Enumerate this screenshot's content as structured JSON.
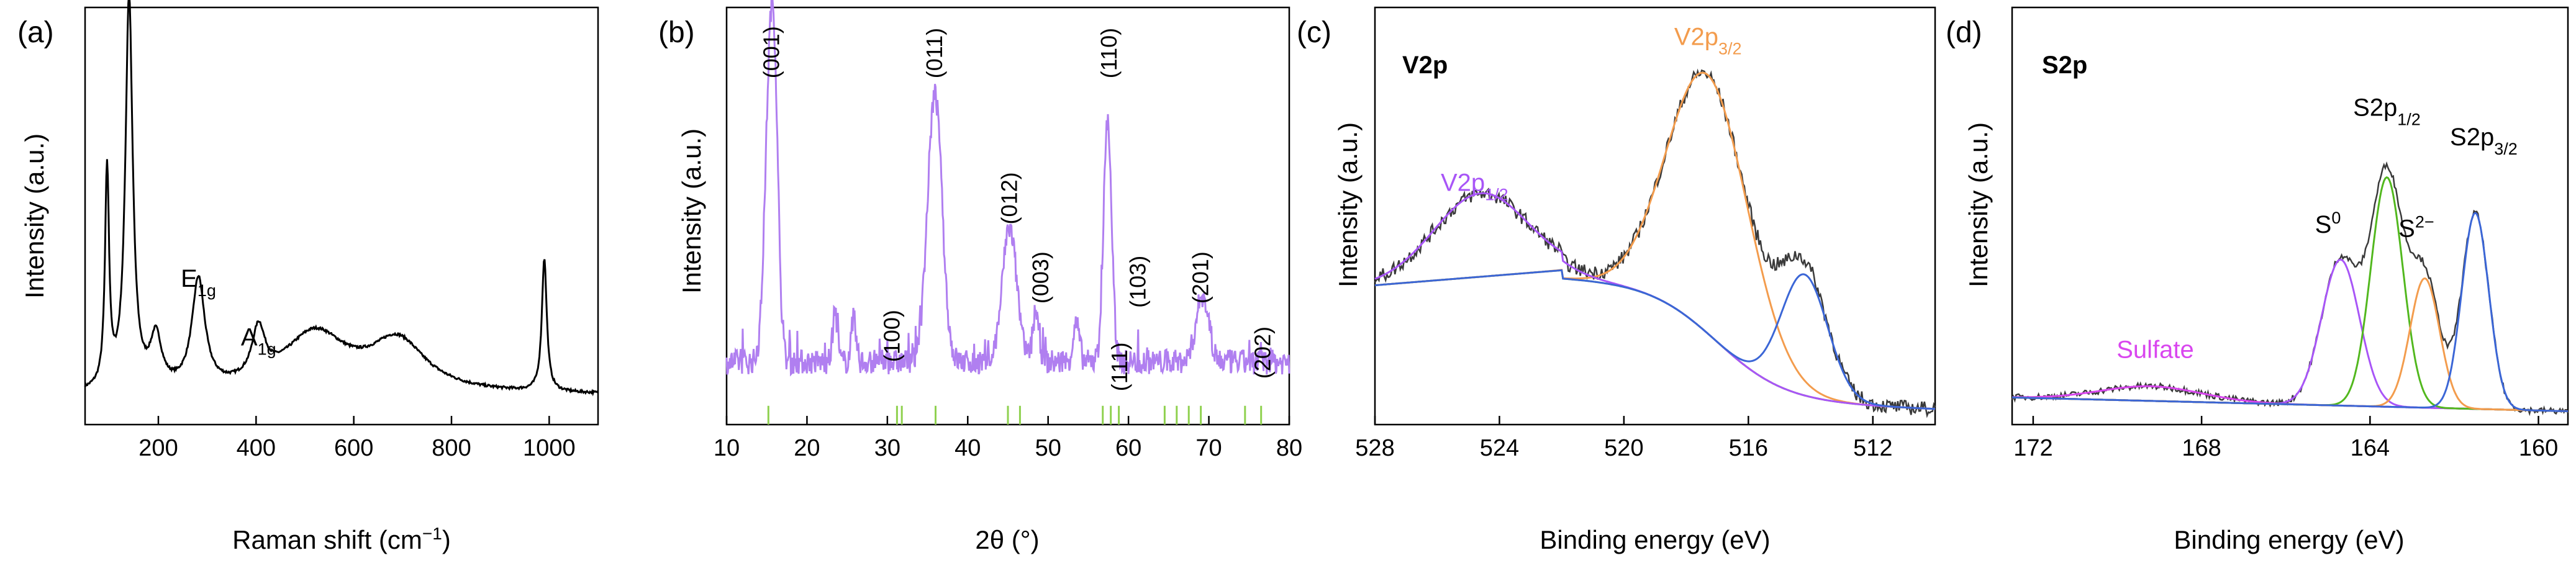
{
  "chart_data": [
    {
      "panel_label": "(a)",
      "type": "line",
      "xlabel_main": "Raman shift (cm",
      "xlabel_sup": "−1",
      "xlabel_close": ")",
      "ylabel": "Intensity (a.u.)",
      "xlim": [
        50,
        1100
      ],
      "ylim": [
        0,
        1.0
      ],
      "xticks": [
        200,
        400,
        600,
        800,
        1000
      ],
      "line_color": "#000000",
      "peaks": [
        {
          "x": 95,
          "h": 0.52,
          "w": 5
        },
        {
          "x": 140,
          "h": 0.94,
          "w": 9
        },
        {
          "x": 195,
          "h": 0.12,
          "w": 14
        },
        {
          "x": 282,
          "h": 0.26,
          "w": 16
        },
        {
          "x": 405,
          "h": 0.12,
          "w": 16
        },
        {
          "x": 520,
          "h": 0.14,
          "w": 80
        },
        {
          "x": 690,
          "h": 0.12,
          "w": 70
        },
        {
          "x": 990,
          "h": 0.32,
          "w": 6
        }
      ],
      "baseline": 0.07,
      "annotations": [
        {
          "base": "E",
          "sub": "1g",
          "x": 282,
          "y": 0.33
        },
        {
          "base": "A",
          "sub": "1g",
          "x": 405,
          "y": 0.19
        }
      ]
    },
    {
      "panel_label": "(b)",
      "type": "line",
      "xlabel_main": "2θ (°)",
      "ylabel": "Intensity (a.u.)",
      "xlim": [
        10,
        80
      ],
      "ylim": [
        0,
        1.0
      ],
      "xticks": [
        10,
        20,
        30,
        40,
        50,
        60,
        70,
        80
      ],
      "line_color": "#b07ff0",
      "ref_color": "#8fd14f",
      "peaks": [
        {
          "x": 15.3,
          "h": 0.58,
          "w": 0.6
        },
        {
          "x": 16.0,
          "h": 0.48,
          "w": 0.5
        },
        {
          "x": 35.9,
          "h": 0.64,
          "w": 0.9
        },
        {
          "x": 45.2,
          "h": 0.32,
          "w": 0.9
        },
        {
          "x": 57.4,
          "h": 0.58,
          "w": 0.5
        },
        {
          "x": 69.2,
          "h": 0.16,
          "w": 0.8
        },
        {
          "x": 23.5,
          "h": 0.12,
          "w": 0.3
        },
        {
          "x": 25.8,
          "h": 0.1,
          "w": 0.3
        },
        {
          "x": 48.5,
          "h": 0.12,
          "w": 0.4
        },
        {
          "x": 53.5,
          "h": 0.09,
          "w": 0.4
        }
      ],
      "baseline": 0.15,
      "ref_lines": [
        15.2,
        31.2,
        31.8,
        36.0,
        45.0,
        46.5,
        56.8,
        57.8,
        58.8,
        64.5,
        66.0,
        67.5,
        69.0,
        74.5,
        76.5
      ],
      "hkl_labels": [
        {
          "text": "(001)",
          "x": 15.6,
          "y": 0.83
        },
        {
          "text": "(011)",
          "x": 35.9,
          "y": 0.83
        },
        {
          "text": "(012)",
          "x": 45.2,
          "y": 0.48
        },
        {
          "text": "(100)",
          "x": 30.6,
          "y": 0.15
        },
        {
          "text": "(003)",
          "x": 49.1,
          "y": 0.29
        },
        {
          "text": "(110)",
          "x": 57.6,
          "y": 0.83
        },
        {
          "text": "(111)",
          "x": 58.9,
          "y": 0.08
        },
        {
          "text": "(103)",
          "x": 61.2,
          "y": 0.28
        },
        {
          "text": "(201)",
          "x": 69.0,
          "y": 0.29
        },
        {
          "text": "(202)",
          "x": 76.7,
          "y": 0.11
        }
      ]
    },
    {
      "panel_label": "(c)",
      "type": "line",
      "title": "V2p",
      "xlabel_main": "Binding energy (eV)",
      "ylabel": "Intensity (a.u.)",
      "xlim": [
        528,
        510
      ],
      "ylim": [
        0,
        1.0
      ],
      "xticks": [
        528,
        524,
        520,
        516,
        512
      ],
      "series": [
        {
          "name": "background",
          "color": "#6aaa2a"
        },
        {
          "name": "V2p3/2 fit",
          "color": "#f39c4d",
          "center": 517.3,
          "h": 0.62,
          "w": 1.3
        },
        {
          "name": "V2p1/2 fit",
          "color": "#a855f7",
          "center": 524.6,
          "h": 0.2,
          "w": 1.5
        },
        {
          "name": "low BE component",
          "color": "#3b66d6",
          "center": 514.2,
          "h": 0.29,
          "w": 0.75
        },
        {
          "name": "raw data",
          "color": "#3a3a3a"
        }
      ],
      "labels": [
        {
          "base": "V2p",
          "sub": "3/2",
          "x": 517.3,
          "y": 0.91,
          "color": "#f39c4d"
        },
        {
          "base": "V2p",
          "sub": "1/2",
          "x": 524.8,
          "y": 0.56,
          "color": "#a855f7"
        }
      ]
    },
    {
      "panel_label": "(d)",
      "type": "line",
      "title": "S2p",
      "xlabel_main": "Binding energy (eV)",
      "ylabel": "Intensity (a.u.)",
      "xlim": [
        172.5,
        159.3
      ],
      "ylim": [
        0,
        1.0
      ],
      "xticks": [
        172,
        168,
        164,
        160
      ],
      "series": [
        {
          "name": "background",
          "color": "#f39c4d"
        },
        {
          "name": "Sulfate",
          "color": "#d946ef",
          "center": 169.2,
          "h": 0.035,
          "w": 1.2
        },
        {
          "name": "S0",
          "color": "#a855f7",
          "center": 164.7,
          "h": 0.35,
          "w": 0.45
        },
        {
          "name": "S2p1/2",
          "color": "#52b81e",
          "center": 163.6,
          "h": 0.55,
          "w": 0.38
        },
        {
          "name": "S2-",
          "color": "#f39c4d",
          "center": 162.7,
          "h": 0.31,
          "w": 0.35
        },
        {
          "name": "S2p3/2",
          "color": "#3b66d6",
          "center": 161.5,
          "h": 0.47,
          "w": 0.32
        },
        {
          "name": "raw data",
          "color": "#3a3a3a"
        }
      ],
      "labels": [
        {
          "base": "S2p",
          "sub": "1/2",
          "x": 163.6,
          "y": 0.74,
          "color": "#000000"
        },
        {
          "base": "S2p",
          "sub": "3/2",
          "x": 161.3,
          "y": 0.67,
          "color": "#000000"
        },
        {
          "base": "S",
          "sup": "0",
          "x": 165.0,
          "y": 0.46,
          "color": "#000000"
        },
        {
          "base": "S",
          "sup": "2−",
          "x": 162.9,
          "y": 0.45,
          "color": "#000000"
        },
        {
          "text": "Sulfate",
          "x": 169.1,
          "y": 0.16,
          "color": "#d946ef"
        }
      ]
    }
  ]
}
